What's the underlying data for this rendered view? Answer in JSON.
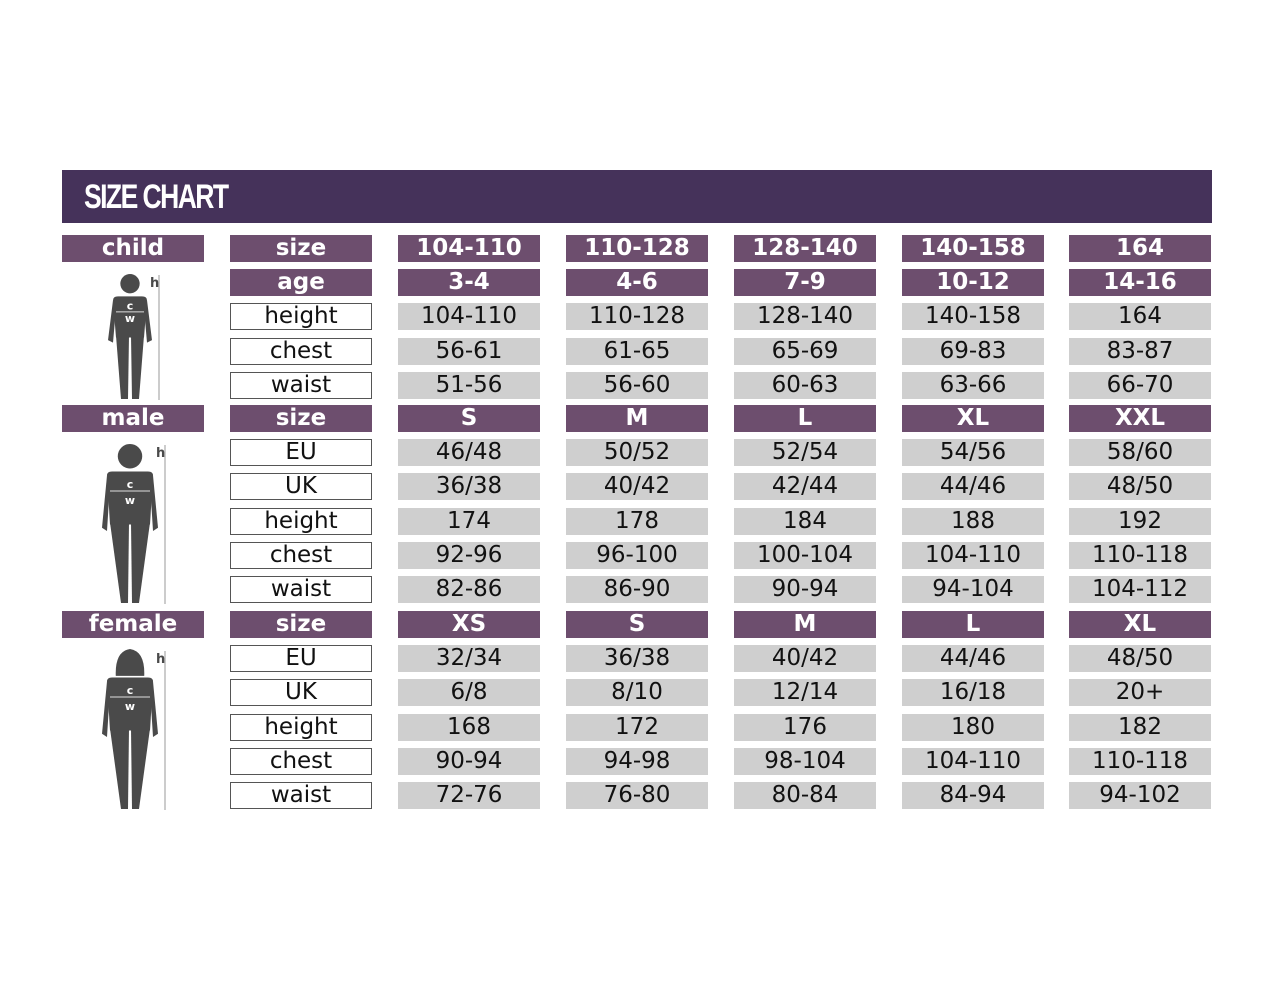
{
  "title": "SIZE CHART",
  "colors": {
    "title_bar": "#45325a",
    "header": "#6d4e6e",
    "value_cell": "#cfcfcf",
    "figure": "#4a4a4a"
  },
  "sections": [
    {
      "group": "child",
      "figure_icon": "child-silhouette-icon",
      "figure_labels": [
        "h",
        "c",
        "w"
      ],
      "rows": [
        {
          "key": "size",
          "header": true,
          "values": [
            "104-110",
            "110-128",
            "128-140",
            "140-158",
            "164"
          ]
        },
        {
          "key": "age",
          "header": true,
          "values": [
            "3-4",
            "4-6",
            "7-9",
            "10-12",
            "14-16"
          ]
        },
        {
          "key": "height",
          "values": [
            "104-110",
            "110-128",
            "128-140",
            "140-158",
            "164"
          ]
        },
        {
          "key": "chest",
          "values": [
            "56-61",
            "61-65",
            "65-69",
            "69-83",
            "83-87"
          ]
        },
        {
          "key": "waist",
          "values": [
            "51-56",
            "56-60",
            "60-63",
            "63-66",
            "66-70"
          ]
        }
      ]
    },
    {
      "group": "male",
      "figure_icon": "male-silhouette-icon",
      "figure_labels": [
        "h",
        "c",
        "w"
      ],
      "rows": [
        {
          "key": "size",
          "header": true,
          "values": [
            "S",
            "M",
            "L",
            "XL",
            "XXL"
          ]
        },
        {
          "key": "EU",
          "values": [
            "46/48",
            "50/52",
            "52/54",
            "54/56",
            "58/60"
          ]
        },
        {
          "key": "UK",
          "values": [
            "36/38",
            "40/42",
            "42/44",
            "44/46",
            "48/50"
          ]
        },
        {
          "key": "height",
          "values": [
            "174",
            "178",
            "184",
            "188",
            "192"
          ]
        },
        {
          "key": "chest",
          "values": [
            "92-96",
            "96-100",
            "100-104",
            "104-110",
            "110-118"
          ]
        },
        {
          "key": "waist",
          "values": [
            "82-86",
            "86-90",
            "90-94",
            "94-104",
            "104-112"
          ]
        }
      ]
    },
    {
      "group": "female",
      "figure_icon": "female-silhouette-icon",
      "figure_labels": [
        "h",
        "c",
        "w"
      ],
      "rows": [
        {
          "key": "size",
          "header": true,
          "values": [
            "XS",
            "S",
            "M",
            "L",
            "XL"
          ]
        },
        {
          "key": "EU",
          "values": [
            "32/34",
            "36/38",
            "40/42",
            "44/46",
            "48/50"
          ]
        },
        {
          "key": "UK",
          "values": [
            "6/8",
            "8/10",
            "12/14",
            "16/18",
            "20+"
          ]
        },
        {
          "key": "height",
          "values": [
            "168",
            "172",
            "176",
            "180",
            "182"
          ]
        },
        {
          "key": "chest",
          "values": [
            "90-94",
            "94-98",
            "98-104",
            "104-110",
            "110-118"
          ]
        },
        {
          "key": "waist",
          "values": [
            "72-76",
            "76-80",
            "80-84",
            "84-94",
            "94-102"
          ]
        }
      ]
    }
  ]
}
